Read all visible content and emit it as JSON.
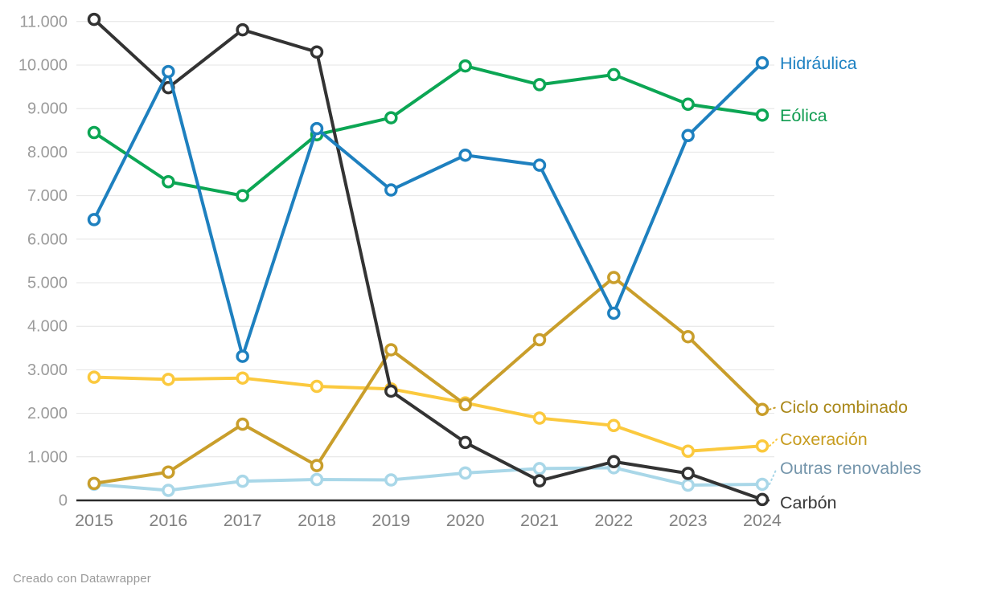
{
  "chart_data": {
    "type": "line",
    "title": "",
    "xlabel": "",
    "ylabel": "",
    "x_categories": [
      "2015",
      "2016",
      "2017",
      "2018",
      "2019",
      "2020",
      "2021",
      "2022",
      "2023",
      "2024"
    ],
    "ylim": [
      0,
      11000
    ],
    "y_tick_values": [
      0,
      1000,
      2000,
      3000,
      4000,
      5000,
      6000,
      7000,
      8000,
      9000,
      10000,
      11000
    ],
    "y_tick_labels": [
      "0",
      "1.000",
      "2.000",
      "3.000",
      "4.000",
      "5.000",
      "6.000",
      "7.000",
      "8.000",
      "9.000",
      "10.000",
      "11.000"
    ],
    "grid": "horizontal",
    "legend_position": "right-end-labels",
    "draw_order": [
      "outras-renovables",
      "coxeracion",
      "ciclo-combinado",
      "eolica",
      "carbon",
      "hidraulica"
    ],
    "series": [
      {
        "id": "hidraulica",
        "name": "Hidráulica",
        "color": "#1e80bf",
        "label_color": "#1d81c2",
        "label_y": 79,
        "leader": false,
        "values": [
          6450,
          9850,
          3310,
          8540,
          7130,
          7930,
          7700,
          4300,
          8380,
          10050
        ]
      },
      {
        "id": "eolica",
        "name": "Eólica",
        "color": "#0ca654",
        "label_color": "#0f9c50",
        "label_y": 144,
        "leader": false,
        "values": [
          8450,
          7320,
          7000,
          8400,
          8790,
          9980,
          9550,
          9780,
          9100,
          8850
        ]
      },
      {
        "id": "ciclo-combinado",
        "name": "Ciclo combinado",
        "color": "#c99e2b",
        "label_color": "#a98718",
        "label_y": 507,
        "leader": true,
        "values": [
          390,
          650,
          1750,
          800,
          3460,
          2200,
          3690,
          5120,
          3760,
          2090
        ]
      },
      {
        "id": "coxeracion",
        "name": "Coxeración",
        "color": "#fbc93e",
        "label_color": "#c79c1f",
        "label_y": 547,
        "leader": true,
        "values": [
          2830,
          2780,
          2810,
          2620,
          2560,
          2240,
          1890,
          1720,
          1130,
          1250
        ]
      },
      {
        "id": "outras-renovables",
        "name": "Outras renovables",
        "color": "#a9d7e8",
        "label_color": "#7495ab",
        "label_y": 583,
        "leader": true,
        "values": [
          370,
          230,
          440,
          480,
          470,
          630,
          730,
          750,
          350,
          370
        ]
      },
      {
        "id": "carbon",
        "name": "Carbón",
        "color": "#333333",
        "label_color": "#3a3a3a",
        "label_y": 626,
        "leader": false,
        "values": [
          11050,
          9480,
          10810,
          10300,
          2510,
          1330,
          450,
          890,
          620,
          20
        ]
      }
    ],
    "axis_style": {
      "grid_color": "#e4e4e4",
      "baseline_color": "#2b2b2b",
      "y_tick_color": "#9b9b9b",
      "x_tick_color": "#818181"
    }
  },
  "footer": {
    "credit": "Creado con Datawrapper"
  }
}
